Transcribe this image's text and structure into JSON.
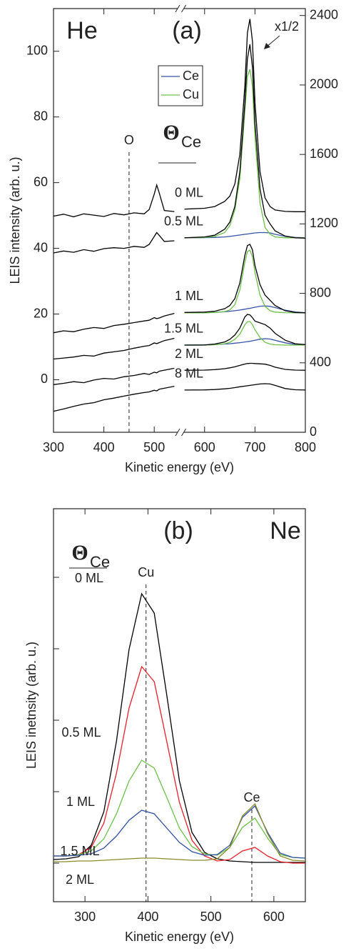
{
  "chart_data": [
    {
      "type": "line",
      "title": "(a)",
      "annotations": {
        "projectile": "He",
        "scale_note": "x1/2",
        "coverage_symbol": "Θ",
        "coverage_subscript": "Ce"
      },
      "xlabel": "Kinetic energy (eV)",
      "ylabel": "LEIS intensity (arb. u.)",
      "xlim": [
        300,
        800
      ],
      "xticks": [
        300,
        400,
        500,
        600,
        700,
        800
      ],
      "ylim": [
        -16,
        113
      ],
      "yticks": [
        0,
        20,
        40,
        60,
        80,
        100
      ],
      "y2lim": [
        0,
        2440
      ],
      "y2ticks": [
        0,
        400,
        800,
        1200,
        1600,
        2000,
        2400
      ],
      "markers": [
        {
          "label": "O",
          "x": 450
        }
      ],
      "series": [
        {
          "color": "#000000",
          "x": [
            300,
            320,
            340,
            360,
            380,
            400,
            420,
            440,
            460,
            480,
            490,
            500,
            505,
            510,
            520,
            540
          ],
          "values": [
            49.8,
            50.4,
            49.6,
            50.5,
            50.1,
            49.7,
            50.6,
            50.2,
            50.8,
            50.5,
            51.8,
            56.5,
            59.3,
            56.8,
            51.5,
            51.2
          ]
        },
        {
          "color": "#000000",
          "x": [
            300,
            320,
            340,
            360,
            380,
            400,
            420,
            440,
            460,
            480,
            490,
            500,
            505,
            510,
            520,
            540
          ],
          "values": [
            38.6,
            39.2,
            38.8,
            39.6,
            39.1,
            39.9,
            40.2,
            40.0,
            40.6,
            40.3,
            41.2,
            43.6,
            44.8,
            43.9,
            42.1,
            42.3
          ]
        },
        {
          "color": "#000000",
          "x": [
            300,
            320,
            340,
            360,
            380,
            400,
            420,
            440,
            460,
            480,
            490,
            500,
            505,
            510,
            520,
            540
          ],
          "values": [
            14.3,
            14.9,
            14.6,
            15.4,
            15.9,
            15.6,
            16.5,
            16.9,
            17.4,
            17.9,
            18.1,
            18.9,
            18.6,
            18.8,
            19.4,
            20.2
          ]
        },
        {
          "color": "#000000",
          "x": [
            300,
            320,
            340,
            360,
            380,
            400,
            420,
            440,
            460,
            480,
            490,
            500,
            505,
            510,
            520,
            540
          ],
          "values": [
            6.3,
            6.6,
            6.9,
            7.4,
            7.2,
            8.1,
            8.5,
            8.9,
            9.6,
            10.2,
            10.4,
            11.2,
            11.0,
            11.3,
            11.9,
            12.6
          ]
        },
        {
          "color": "#000000",
          "x": [
            300,
            320,
            340,
            360,
            380,
            400,
            420,
            440,
            460,
            480,
            490,
            500,
            505,
            510,
            520,
            540
          ],
          "values": [
            -1.5,
            -1.1,
            -0.6,
            -0.9,
            -0.1,
            0.4,
            0.2,
            0.9,
            1.3,
            1.9,
            1.6,
            2.3,
            2.1,
            2.6,
            2.9,
            3.5
          ]
        },
        {
          "color": "#000000",
          "x": [
            300,
            320,
            340,
            360,
            380,
            400,
            420,
            440,
            460,
            480,
            490,
            500,
            505,
            510,
            520,
            540
          ],
          "values": [
            -9.6,
            -8.9,
            -8.1,
            -7.4,
            -7.0,
            -6.1,
            -5.6,
            -5.0,
            -4.4,
            -3.9,
            -3.7,
            -3.2,
            -3.4,
            -2.9,
            -2.6,
            -2.0
          ]
        },
        {
          "name": "0 ML",
          "color": "#000000",
          "axis": "y2",
          "x": [
            560,
            600,
            620,
            640,
            650,
            660,
            670,
            680,
            685,
            690,
            695,
            700,
            710,
            720,
            730,
            740,
            760,
            780,
            800
          ],
          "values": [
            1285,
            1290,
            1300,
            1330,
            1360,
            1430,
            1600,
            2000,
            2300,
            2380,
            2250,
            1900,
            1500,
            1350,
            1300,
            1280,
            1272,
            1270,
            1270
          ]
        },
        {
          "name": "0.5 ML",
          "color": "#000000",
          "axis": "y2",
          "x": [
            560,
            600,
            620,
            640,
            650,
            660,
            670,
            680,
            685,
            690,
            695,
            700,
            710,
            720,
            730,
            740,
            760,
            780,
            800
          ],
          "values": [
            1120,
            1125,
            1135,
            1170,
            1210,
            1300,
            1500,
            1900,
            2150,
            2234,
            2100,
            1780,
            1400,
            1250,
            1200,
            1160,
            1130,
            1120,
            1118
          ]
        },
        {
          "name": "1 ML",
          "color": "#000000",
          "axis": "y2",
          "x": [
            560,
            600,
            620,
            640,
            650,
            660,
            670,
            680,
            685,
            690,
            695,
            700,
            710,
            720,
            730,
            740,
            760,
            780,
            800
          ],
          "values": [
            690,
            692,
            697,
            712,
            730,
            770,
            860,
            1020,
            1075,
            1082,
            1050,
            960,
            850,
            790,
            760,
            730,
            700,
            690,
            688
          ]
        },
        {
          "name": "1.5 ML",
          "color": "#000000",
          "axis": "y2",
          "x": [
            560,
            600,
            620,
            640,
            650,
            660,
            670,
            680,
            685,
            690,
            695,
            700,
            710,
            720,
            730,
            740,
            760,
            780,
            800
          ],
          "values": [
            502,
            503,
            508,
            520,
            535,
            560,
            600,
            665,
            679,
            676,
            660,
            640,
            630,
            620,
            600,
            570,
            530,
            510,
            505
          ]
        },
        {
          "name": "2 ML",
          "color": "#000000",
          "axis": "y2",
          "x": [
            560,
            600,
            620,
            640,
            650,
            660,
            670,
            680,
            685,
            690,
            695,
            700,
            710,
            720,
            730,
            740,
            760,
            780,
            800
          ],
          "values": [
            357,
            358,
            361,
            366,
            371,
            377,
            385,
            393,
            396,
            397,
            397,
            396,
            394,
            392,
            385,
            375,
            362,
            358,
            357
          ]
        },
        {
          "name": "8 ML",
          "color": "#000000",
          "axis": "y2",
          "x": [
            560,
            600,
            620,
            640,
            650,
            660,
            670,
            680,
            685,
            690,
            695,
            700,
            710,
            720,
            730,
            740,
            760,
            780,
            800
          ],
          "values": [
            243,
            244,
            246,
            250,
            253,
            257,
            262,
            266,
            268,
            270,
            272,
            274,
            278,
            280,
            278,
            270,
            252,
            245,
            243
          ]
        }
      ],
      "components": [
        {
          "name": "Ce",
          "color": "#3553a8",
          "axis": "y2",
          "x": [
            560,
            600,
            620,
            640,
            650,
            660,
            670,
            680,
            685,
            690,
            695,
            700,
            710,
            720,
            730,
            740,
            760,
            780,
            800
          ],
          "values": [
            1120,
            1121,
            1122,
            1125,
            1128,
            1132,
            1136,
            1140,
            1142,
            1144,
            1146,
            1148,
            1150,
            1150,
            1148,
            1140,
            1128,
            1122,
            1120
          ]
        },
        {
          "name": "Cu",
          "color": "#6cc04a",
          "axis": "y2",
          "x": [
            560,
            600,
            620,
            640,
            650,
            660,
            670,
            680,
            685,
            690,
            695,
            700,
            710,
            720,
            730,
            740,
            760,
            780,
            800
          ],
          "values": [
            1120,
            1122,
            1128,
            1150,
            1190,
            1280,
            1460,
            1850,
            2050,
            2090,
            1990,
            1700,
            1320,
            1180,
            1140,
            1125,
            1120,
            1120,
            1120
          ]
        },
        {
          "name": "Ce",
          "color": "#3553a8",
          "axis": "y2",
          "x": [
            560,
            600,
            620,
            640,
            650,
            660,
            670,
            680,
            685,
            690,
            695,
            700,
            710,
            720,
            730,
            740,
            760,
            780,
            800
          ],
          "values": [
            688,
            689,
            691,
            694,
            697,
            700,
            704,
            709,
            712,
            714,
            717,
            720,
            726,
            728,
            725,
            718,
            703,
            693,
            689
          ]
        },
        {
          "name": "Cu",
          "color": "#6cc04a",
          "axis": "y2",
          "x": [
            560,
            600,
            620,
            640,
            650,
            660,
            670,
            680,
            685,
            690,
            695,
            700,
            710,
            720,
            730,
            740,
            760,
            780,
            800
          ],
          "values": [
            688,
            688,
            690,
            695,
            705,
            735,
            820,
            980,
            1040,
            1049,
            1010,
            920,
            790,
            725,
            700,
            692,
            689,
            688,
            688
          ]
        },
        {
          "name": "Ce",
          "color": "#3553a8",
          "axis": "y2",
          "x": [
            560,
            600,
            620,
            640,
            650,
            660,
            670,
            680,
            685,
            690,
            695,
            700,
            710,
            720,
            730,
            740,
            760,
            780,
            800
          ],
          "values": [
            502,
            503,
            505,
            508,
            510,
            513,
            516,
            520,
            522,
            524,
            527,
            530,
            536,
            539,
            537,
            530,
            515,
            506,
            503
          ]
        },
        {
          "name": "Cu",
          "color": "#6cc04a",
          "axis": "y2",
          "x": [
            560,
            600,
            620,
            640,
            650,
            660,
            670,
            680,
            685,
            690,
            695,
            700,
            710,
            720,
            730,
            740,
            760,
            780,
            800
          ],
          "values": [
            502,
            502,
            504,
            510,
            518,
            535,
            565,
            620,
            636,
            638,
            620,
            590,
            545,
            518,
            508,
            504,
            502,
            502,
            502
          ]
        }
      ]
    },
    {
      "type": "line",
      "title": "(b)",
      "annotations": {
        "projectile": "Ne",
        "coverage_symbol": "Θ",
        "coverage_subscript": "Ce"
      },
      "xlabel": "Kinetic energy (eV)",
      "ylabel": "LEIS inetnsity (arb. u.)",
      "xlim": [
        250,
        650
      ],
      "xticks": [
        300,
        400,
        500,
        600
      ],
      "ylim": [
        -0.54,
        4.96
      ],
      "yticks": [
        0,
        1,
        2,
        3,
        4
      ],
      "markers": [
        {
          "label": "Cu",
          "x": 397
        },
        {
          "label": "Ce",
          "x": 565
        }
      ],
      "x": [
        250,
        270,
        290,
        310,
        330,
        350,
        370,
        390,
        410,
        430,
        450,
        470,
        490,
        510,
        530,
        550,
        570,
        590,
        610,
        630,
        650
      ],
      "series": [
        {
          "name": "0 ML",
          "color": "#000000",
          "values": [
            0.05,
            0.06,
            0.09,
            0.25,
            0.72,
            1.71,
            2.99,
            3.77,
            3.5,
            2.35,
            1.15,
            0.43,
            0.15,
            0.06,
            0.03,
            0.02,
            0.01,
            0.01,
            0.01,
            0.01,
            0.01
          ]
        },
        {
          "name": "0.5 ML",
          "color": "#e8202a",
          "values": [
            0.1,
            0.1,
            0.12,
            0.22,
            0.56,
            1.26,
            2.17,
            2.75,
            2.54,
            1.7,
            0.85,
            0.32,
            0.1,
            0.03,
            0.05,
            0.17,
            0.22,
            0.1,
            0.02,
            0.0,
            0.0
          ]
        },
        {
          "name": "1 ML",
          "color": "#6cc04a",
          "values": [
            0.1,
            0.1,
            0.12,
            0.17,
            0.34,
            0.69,
            1.15,
            1.44,
            1.33,
            0.92,
            0.49,
            0.23,
            0.13,
            0.11,
            0.22,
            0.5,
            0.63,
            0.35,
            0.12,
            0.08,
            0.07
          ]
        },
        {
          "name": "1.5 ML",
          "color": "#2e4ea0",
          "values": [
            0.1,
            0.1,
            0.11,
            0.13,
            0.21,
            0.38,
            0.6,
            0.74,
            0.69,
            0.49,
            0.29,
            0.16,
            0.11,
            0.12,
            0.25,
            0.64,
            0.8,
            0.43,
            0.14,
            0.08,
            0.07
          ]
        },
        {
          "name": "2 ML",
          "color": "#8b8b2a",
          "values": [
            0.02,
            0.02,
            0.03,
            0.03,
            0.04,
            0.05,
            0.06,
            0.07,
            0.07,
            0.06,
            0.05,
            0.04,
            0.04,
            0.06,
            0.22,
            0.66,
            0.83,
            0.41,
            0.1,
            0.04,
            0.03
          ]
        }
      ]
    }
  ]
}
